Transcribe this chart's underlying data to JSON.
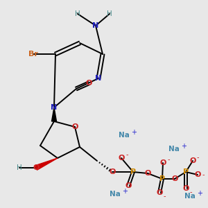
{
  "bg_color": "#e8e8e8",
  "colors": {
    "C": "#000000",
    "N": "#2020bb",
    "O": "#cc2222",
    "Br": "#cc6622",
    "P": "#cc8800",
    "Na": "#4488aa",
    "H": "#4a8a8a",
    "bond": "#000000",
    "minus": "#cc2222",
    "plus": "#2222cc"
  }
}
